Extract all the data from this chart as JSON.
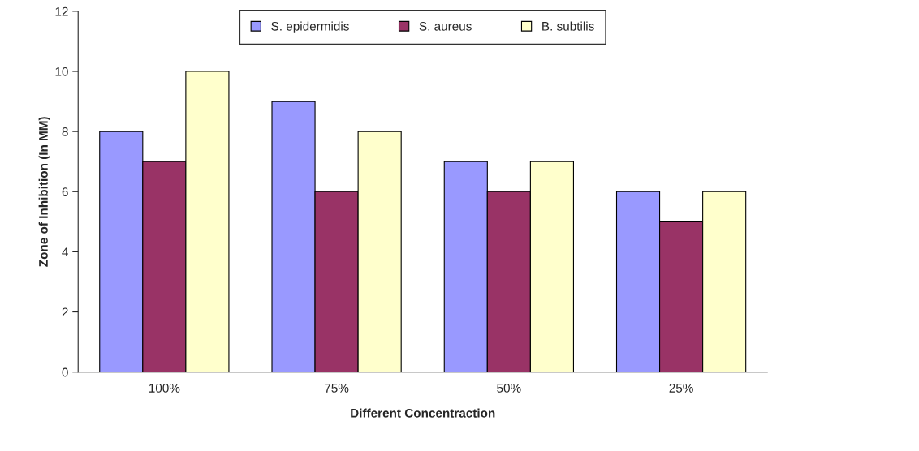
{
  "chart_data": {
    "type": "bar",
    "xlabel": "Different Concentraction",
    "ylabel": "Zone of Inhibition (In MM)",
    "categories": [
      "100%",
      "75%",
      "50%",
      "25%"
    ],
    "series": [
      {
        "name": "S. epidermidis",
        "color": "#9999ff",
        "values": [
          8,
          9,
          7,
          6
        ]
      },
      {
        "name": "S. aureus",
        "color": "#993366",
        "values": [
          7,
          6,
          6,
          5
        ]
      },
      {
        "name": "B. subtilis",
        "color": "#ffffcc",
        "values": [
          10,
          8,
          7,
          6
        ]
      }
    ],
    "ylim": [
      0,
      12
    ],
    "yticks": [
      0,
      2,
      4,
      6,
      8,
      10,
      12
    ],
    "grid": false,
    "legend": "top"
  }
}
